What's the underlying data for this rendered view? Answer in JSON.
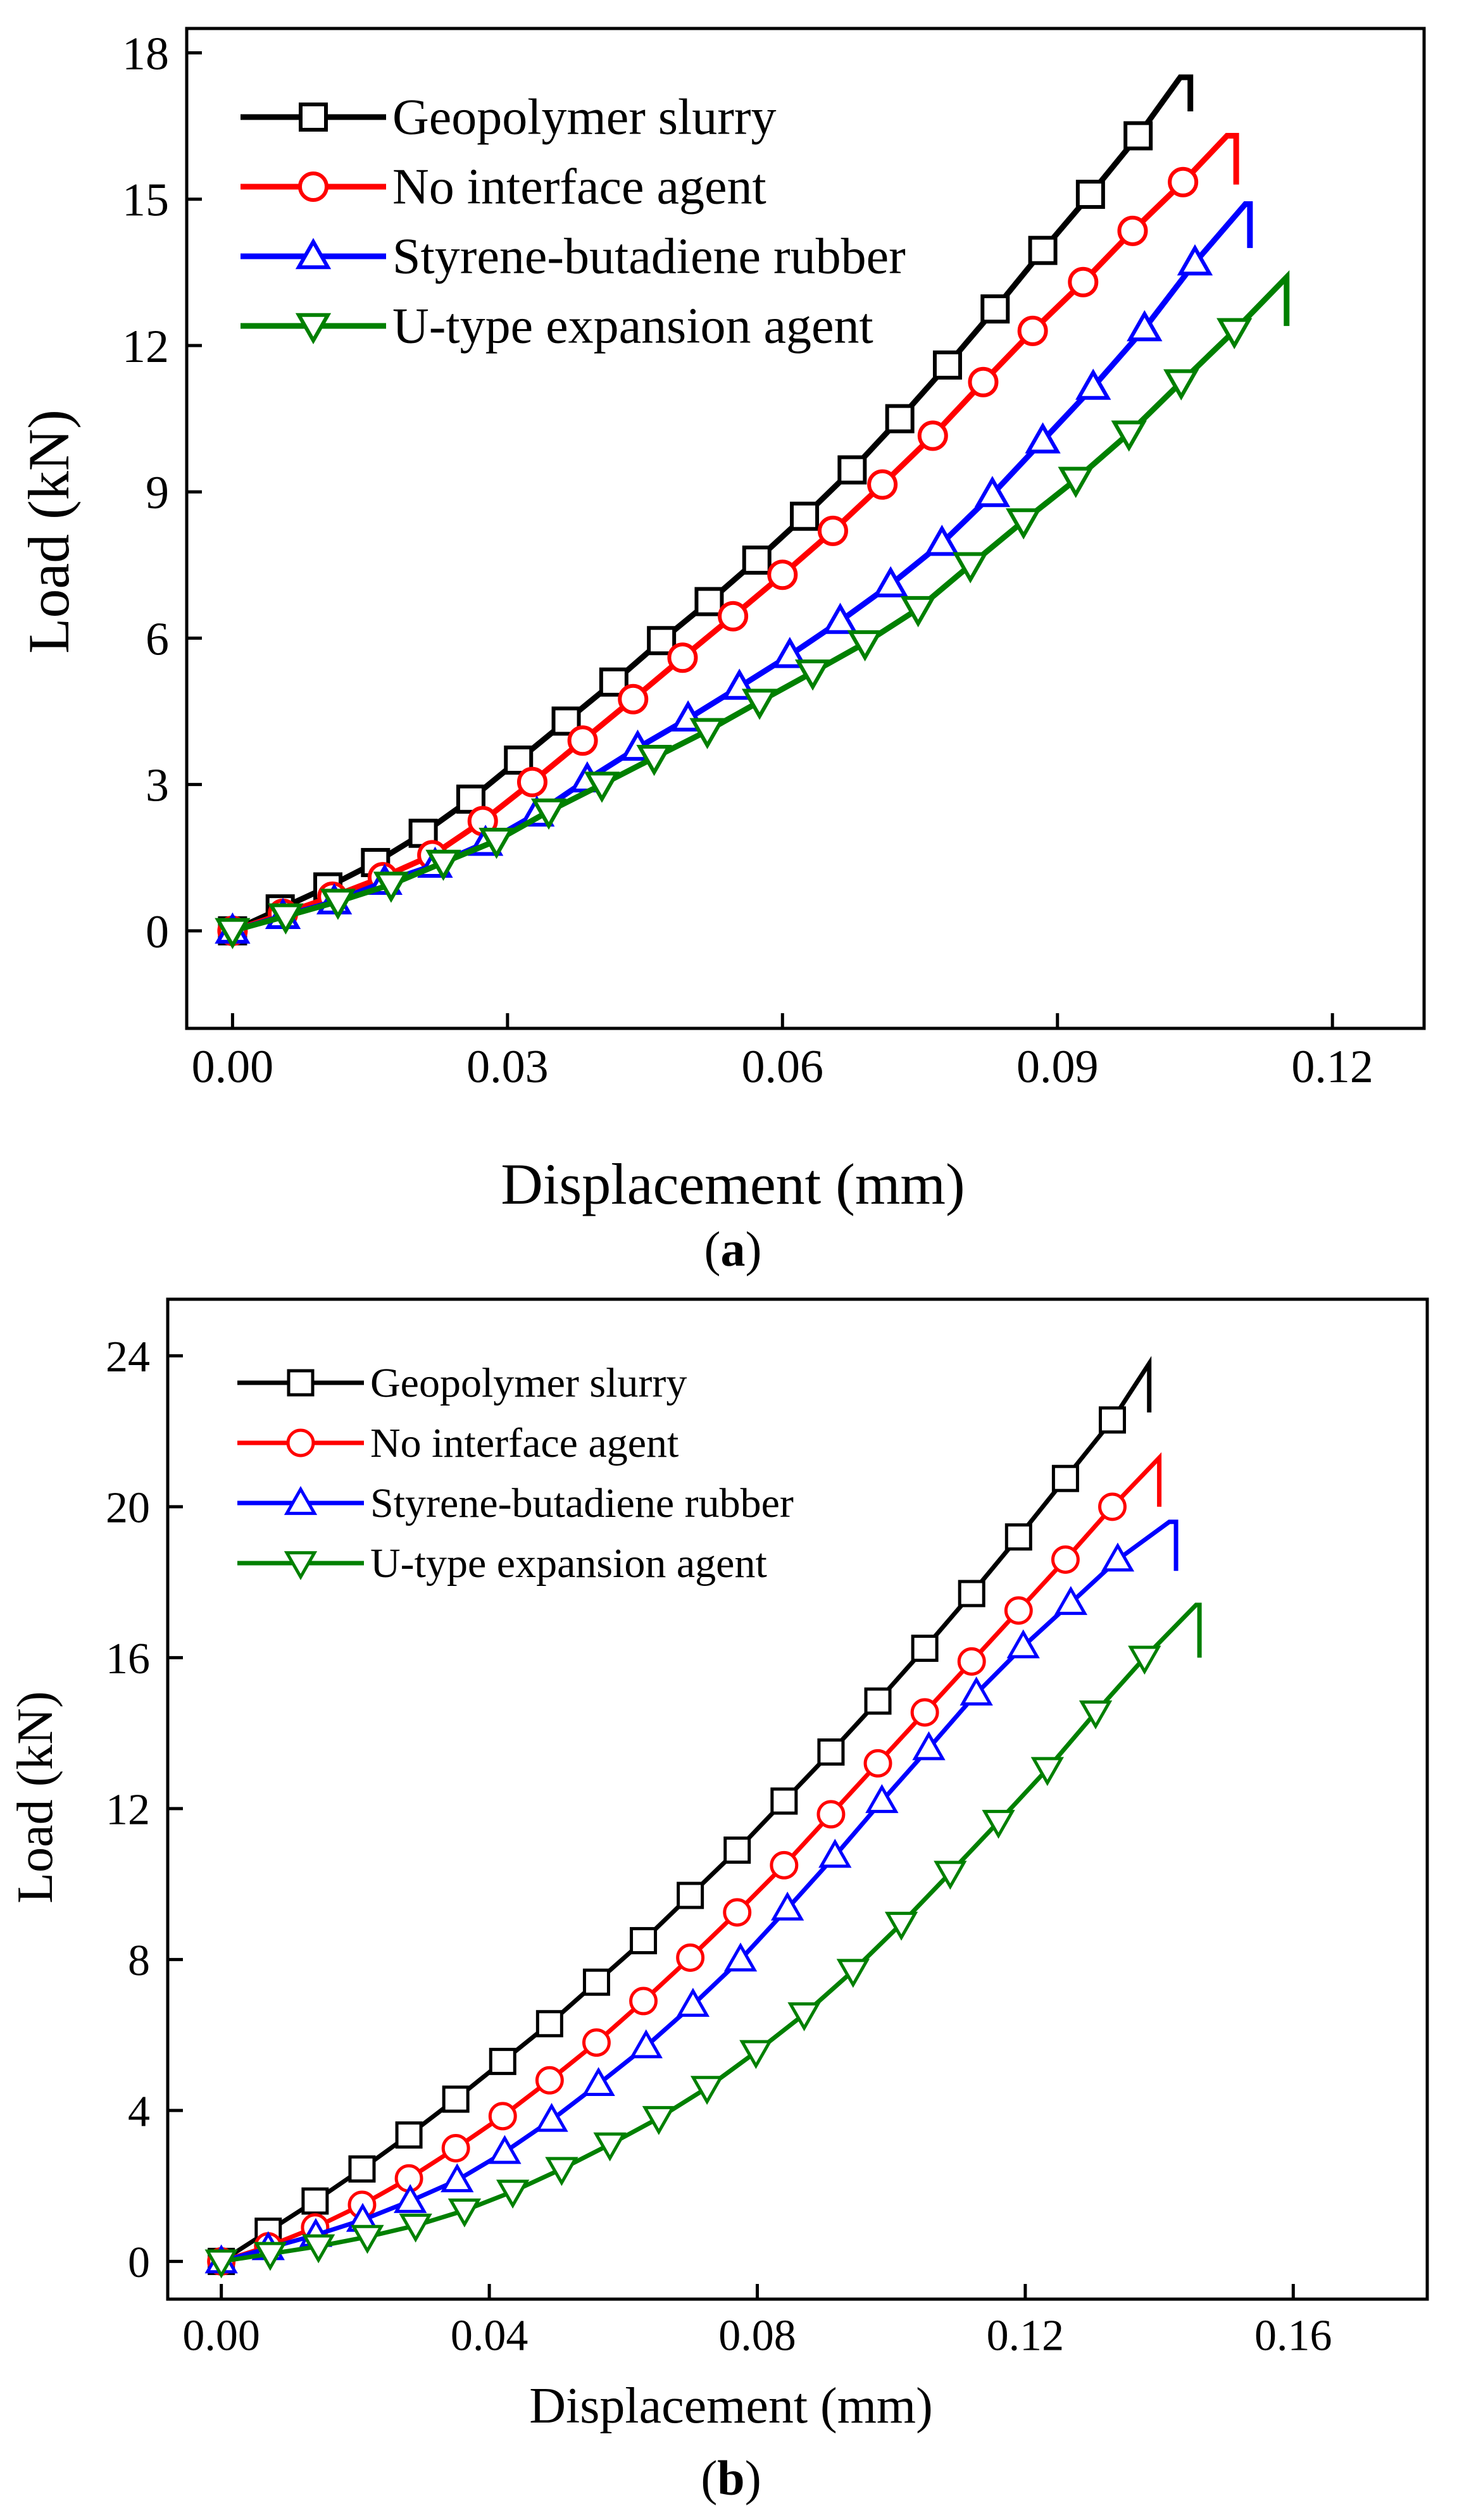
{
  "chart_data": [
    {
      "type": "line",
      "caption": "a",
      "xlabel": "Displacement (mm)",
      "ylabel": "Load (kN)",
      "xlim": [
        -0.005,
        0.13
      ],
      "ylim": [
        -2,
        18.5
      ],
      "xticks": [
        "0.00",
        "0.03",
        "0.06",
        "0.09",
        "0.12"
      ],
      "xtick_values": [
        0,
        0.03,
        0.06,
        0.09,
        0.12
      ],
      "yticks": [
        "0",
        "3",
        "6",
        "9",
        "12",
        "15",
        "18"
      ],
      "ytick_values": [
        0,
        3,
        6,
        9,
        12,
        15,
        18
      ],
      "legend_position": "top-left",
      "series": [
        {
          "name": "Geopolymer slurry",
          "color": "#000000",
          "marker": "square",
          "x": [
            0,
            0.0052,
            0.0104,
            0.0156,
            0.0208,
            0.026,
            0.0312,
            0.0364,
            0.0416,
            0.0468,
            0.052,
            0.0572,
            0.0624,
            0.0676,
            0.0728,
            0.078,
            0.0832,
            0.0884,
            0.0936,
            0.0988,
            0.1034
          ],
          "y": [
            0,
            0.45,
            0.9,
            1.4,
            2.0,
            2.7,
            3.5,
            4.3,
            5.1,
            5.95,
            6.75,
            7.6,
            8.5,
            9.45,
            10.5,
            11.6,
            12.75,
            13.95,
            15.1,
            16.3,
            17.5
          ],
          "drop": [
            0.1045,
            16.8
          ]
        },
        {
          "name": "No interface agent",
          "color": "#ff0000",
          "marker": "circle",
          "x": [
            0,
            0.0055,
            0.0109,
            0.0164,
            0.0218,
            0.0273,
            0.0327,
            0.0382,
            0.0437,
            0.0491,
            0.0546,
            0.06,
            0.0655,
            0.0709,
            0.0764,
            0.0819,
            0.0873,
            0.0928,
            0.0982,
            0.1037,
            0.1085
          ],
          "y": [
            0,
            0.35,
            0.7,
            1.1,
            1.55,
            2.25,
            3.05,
            3.9,
            4.75,
            5.6,
            6.45,
            7.3,
            8.2,
            9.15,
            10.15,
            11.25,
            12.3,
            13.3,
            14.35,
            15.35,
            16.3
          ],
          "drop": [
            0.1095,
            15.3
          ]
        },
        {
          "name": "Styrene-butadiene rubber",
          "color": "#0000ff",
          "marker": "triangle-up",
          "x": [
            0,
            0.0055,
            0.0111,
            0.0166,
            0.0221,
            0.0276,
            0.0332,
            0.0387,
            0.0442,
            0.0497,
            0.0553,
            0.0608,
            0.0663,
            0.0718,
            0.0774,
            0.0829,
            0.0884,
            0.0939,
            0.0995,
            0.105,
            0.1105
          ],
          "y": [
            0,
            0.3,
            0.6,
            1.0,
            1.35,
            1.8,
            2.4,
            3.1,
            3.75,
            4.35,
            5.0,
            5.65,
            6.35,
            7.1,
            7.95,
            8.95,
            10.05,
            11.15,
            12.35,
            13.7,
            14.9
          ],
          "drop": [
            0.111,
            14.0
          ]
        },
        {
          "name": "U-type expansion agent",
          "color": "#008000",
          "marker": "triangle-down",
          "x": [
            0,
            0.0058,
            0.0115,
            0.0173,
            0.023,
            0.0288,
            0.0345,
            0.0403,
            0.046,
            0.0518,
            0.0575,
            0.0633,
            0.069,
            0.0748,
            0.0805,
            0.0863,
            0.092,
            0.0978,
            0.1035,
            0.1093,
            0.115
          ],
          "y": [
            0,
            0.3,
            0.6,
            0.95,
            1.4,
            1.85,
            2.45,
            3.0,
            3.55,
            4.1,
            4.7,
            5.3,
            5.9,
            6.6,
            7.5,
            8.4,
            9.25,
            10.2,
            11.25,
            12.3,
            13.4
          ],
          "drop": [
            0.115,
            12.4
          ]
        }
      ]
    },
    {
      "type": "line",
      "caption": "b",
      "xlabel": "Displacement (mm)",
      "ylabel": "Load (kN)",
      "xlim": [
        -0.008,
        0.18
      ],
      "ylim": [
        -1,
        25.5
      ],
      "xticks": [
        "0.00",
        "0.04",
        "0.08",
        "0.12",
        "0.16"
      ],
      "xtick_values": [
        0,
        0.04,
        0.08,
        0.12,
        0.16
      ],
      "yticks": [
        "0",
        "4",
        "8",
        "12",
        "16",
        "20",
        "24"
      ],
      "ytick_values": [
        0,
        4,
        8,
        12,
        16,
        20,
        24
      ],
      "legend_position": "top-left",
      "series": [
        {
          "name": "Geopolymer slurry",
          "color": "#000000",
          "marker": "square",
          "x": [
            0,
            0.007,
            0.014,
            0.021,
            0.028,
            0.035,
            0.042,
            0.049,
            0.056,
            0.063,
            0.07,
            0.077,
            0.084,
            0.091,
            0.098,
            0.105,
            0.112,
            0.119,
            0.126,
            0.133,
            0.1385
          ],
          "y": [
            0,
            0.8,
            1.6,
            2.45,
            3.35,
            4.3,
            5.3,
            6.3,
            7.4,
            8.5,
            9.7,
            10.9,
            12.2,
            13.5,
            14.85,
            16.25,
            17.7,
            19.2,
            20.75,
            22.3,
            23.8
          ],
          "drop": [
            0.1385,
            22.5
          ]
        },
        {
          "name": "No interface agent",
          "color": "#ff0000",
          "marker": "circle",
          "x": [
            0,
            0.007,
            0.014,
            0.021,
            0.028,
            0.035,
            0.042,
            0.049,
            0.056,
            0.063,
            0.07,
            0.077,
            0.084,
            0.091,
            0.098,
            0.105,
            0.112,
            0.119,
            0.126,
            0.133,
            0.14
          ],
          "y": [
            0,
            0.4,
            0.9,
            1.5,
            2.2,
            3.0,
            3.85,
            4.8,
            5.8,
            6.9,
            8.05,
            9.25,
            10.5,
            11.85,
            13.2,
            14.55,
            15.9,
            17.25,
            18.6,
            20.0,
            21.3
          ],
          "drop": [
            0.14,
            20.0
          ]
        },
        {
          "name": "Styrene-butadiene rubber",
          "color": "#0000ff",
          "marker": "triangle-up",
          "x": [
            0,
            0.007,
            0.0141,
            0.0211,
            0.0282,
            0.0352,
            0.0423,
            0.0493,
            0.0563,
            0.0634,
            0.0704,
            0.0775,
            0.0845,
            0.0916,
            0.0986,
            0.1056,
            0.1127,
            0.1197,
            0.1268,
            0.1338,
            0.1415
          ],
          "y": [
            0,
            0.35,
            0.7,
            1.1,
            1.6,
            2.15,
            2.9,
            3.75,
            4.7,
            5.7,
            6.8,
            8.0,
            9.35,
            10.75,
            12.2,
            13.6,
            15.05,
            16.3,
            17.45,
            18.6,
            19.6
          ],
          "drop": [
            0.1425,
            18.3
          ]
        },
        {
          "name": "U-type expansion agent",
          "color": "#008000",
          "marker": "triangle-down",
          "x": [
            0,
            0.0073,
            0.0145,
            0.0218,
            0.029,
            0.0363,
            0.0435,
            0.0508,
            0.058,
            0.0653,
            0.0725,
            0.0798,
            0.087,
            0.0943,
            0.1015,
            0.1088,
            0.116,
            0.1233,
            0.1305,
            0.1378,
            0.1455
          ],
          "y": [
            0,
            0.2,
            0.4,
            0.65,
            0.95,
            1.35,
            1.85,
            2.45,
            3.1,
            3.8,
            4.6,
            5.55,
            6.55,
            7.7,
            8.95,
            10.3,
            11.65,
            13.05,
            14.55,
            16.0,
            17.4
          ],
          "drop": [
            0.146,
            16.0
          ]
        }
      ]
    }
  ]
}
